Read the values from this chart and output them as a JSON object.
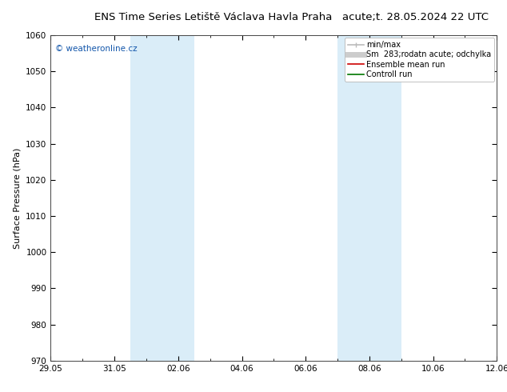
{
  "title_left": "ENS Time Series Letiště Václava Havla Praha",
  "title_right": "acute;t. 28.05.2024 22 UTC",
  "ylabel": "Surface Pressure (hPa)",
  "ylim": [
    970,
    1060
  ],
  "yticks": [
    970,
    980,
    990,
    1000,
    1010,
    1020,
    1030,
    1040,
    1050,
    1060
  ],
  "xtick_labels": [
    "29.05",
    "31.05",
    "02.06",
    "04.06",
    "06.06",
    "08.06",
    "10.06",
    "12.06"
  ],
  "xtick_positions": [
    0,
    2,
    4,
    6,
    8,
    10,
    12,
    14
  ],
  "shade_regions": [
    {
      "x_start": 2.5,
      "x_end": 4.5,
      "color": "#daedf8"
    },
    {
      "x_start": 9.0,
      "x_end": 11.0,
      "color": "#daedf8"
    }
  ],
  "watermark": "© weatheronline.cz",
  "watermark_color": "#1155aa",
  "legend_items": [
    {
      "label": "min/max",
      "color": "#bbbbbb",
      "lw": 1.2
    },
    {
      "label": "Sm  283;rodatn acute; odchylka",
      "color": "#cccccc",
      "lw": 5
    },
    {
      "label": "Ensemble mean run",
      "color": "#cc0000",
      "lw": 1.2
    },
    {
      "label": "Controll run",
      "color": "#007700",
      "lw": 1.2
    }
  ],
  "bg_color": "#ffffff",
  "plot_bg_color": "#ffffff",
  "title_fontsize": 9.5,
  "tick_fontsize": 7.5,
  "ylabel_fontsize": 8,
  "legend_fontsize": 7,
  "watermark_fontsize": 7.5
}
